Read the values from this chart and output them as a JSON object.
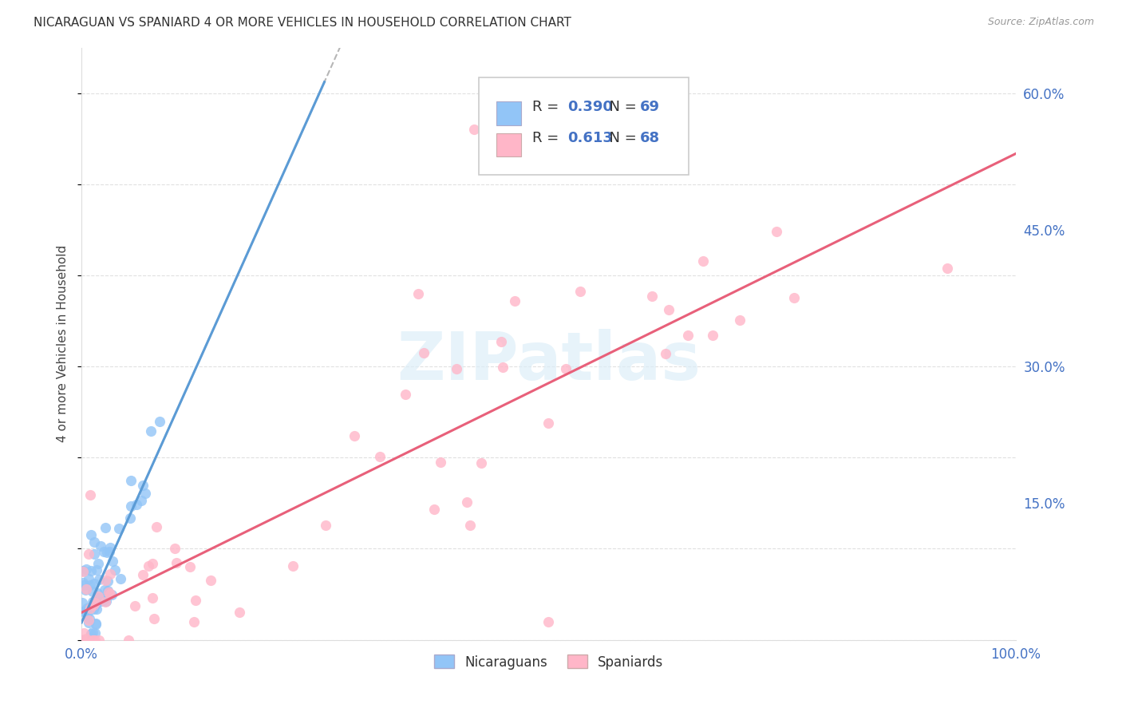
{
  "title": "NICARAGUAN VS SPANIARD 4 OR MORE VEHICLES IN HOUSEHOLD CORRELATION CHART",
  "source": "Source: ZipAtlas.com",
  "ylabel": "4 or more Vehicles in Household",
  "watermark": "ZIPatlas",
  "x_tick_labels": [
    "0.0%",
    "",
    "",
    "",
    "",
    "100.0%"
  ],
  "y_tick_labels": [
    "",
    "15.0%",
    "30.0%",
    "45.0%",
    "60.0%"
  ],
  "nic_color": "#92C5F7",
  "spa_color": "#FFB6C8",
  "nic_line_color": "#5B9BD5",
  "spa_line_color": "#E8607A",
  "dash_color": "#AAAAAA",
  "axis_label_color": "#4472C4",
  "grid_color": "#CCCCCC",
  "legend_R_color": "#4472C4",
  "legend_N_color": "#4472C4",
  "nic_R": "0.390",
  "nic_N": "69",
  "spa_R": "0.613",
  "spa_N": "68"
}
